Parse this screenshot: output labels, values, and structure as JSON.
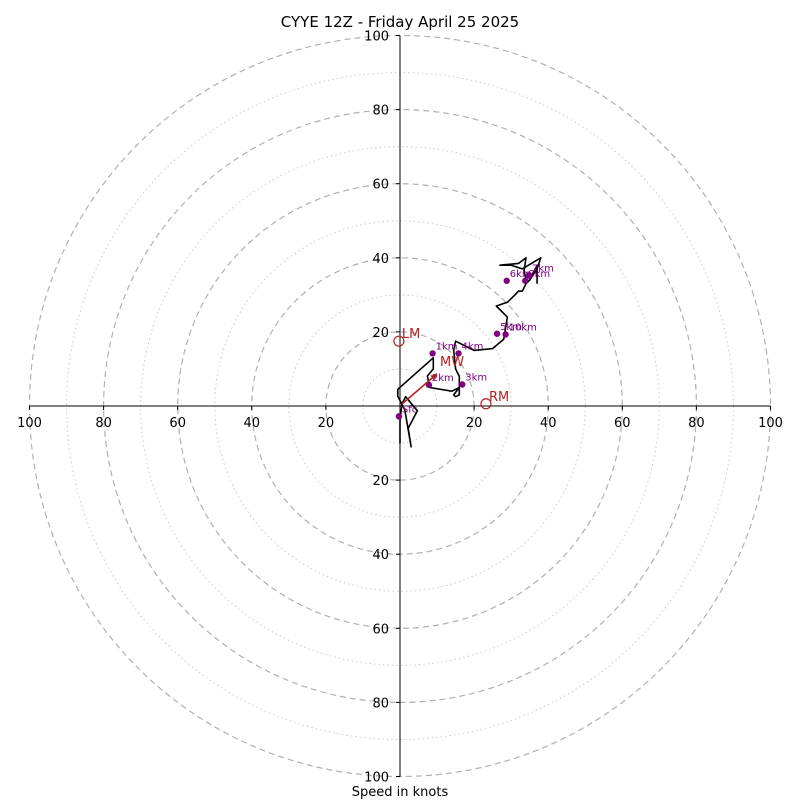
{
  "chart_data": {
    "type": "hodograph",
    "title": "CYYE 12Z - Friday April 25 2025",
    "xlabel": "Speed in knots",
    "range": [
      -100,
      100
    ],
    "rings": {
      "major": [
        20,
        40,
        60,
        80,
        100
      ],
      "minor": [
        10,
        30,
        50,
        70,
        90
      ],
      "grid": true
    },
    "ticks": {
      "x": [
        {
          "value": -100,
          "label": "100"
        },
        {
          "value": -80,
          "label": "80"
        },
        {
          "value": -60,
          "label": "60"
        },
        {
          "value": -40,
          "label": "40"
        },
        {
          "value": -20,
          "label": "20"
        },
        {
          "value": 20,
          "label": "20"
        },
        {
          "value": 40,
          "label": "40"
        },
        {
          "value": 60,
          "label": "60"
        },
        {
          "value": 80,
          "label": "80"
        },
        {
          "value": 100,
          "label": "100"
        }
      ],
      "y": [
        {
          "value": 100,
          "label": "100"
        },
        {
          "value": 80,
          "label": "80"
        },
        {
          "value": 60,
          "label": "60"
        },
        {
          "value": 40,
          "label": "40"
        },
        {
          "value": 20,
          "label": "20"
        },
        {
          "value": -20,
          "label": "20"
        },
        {
          "value": -40,
          "label": "40"
        },
        {
          "value": -60,
          "label": "60"
        },
        {
          "value": -80,
          "label": "80"
        },
        {
          "value": -100,
          "label": "100"
        }
      ]
    },
    "hodograph_line": {
      "color": "#000000",
      "points": [
        [
          0,
          -10
        ],
        [
          0,
          -4
        ],
        [
          0.5,
          0.5
        ],
        [
          1.5,
          2.5
        ],
        [
          4.7,
          -1.3
        ],
        [
          2.2,
          -6
        ],
        [
          3,
          -11
        ],
        [
          1.3,
          -1
        ],
        [
          -0.6,
          2.6
        ],
        [
          -0.6,
          4.5
        ],
        [
          9,
          13
        ],
        [
          9,
          10
        ],
        [
          7.4,
          8.1
        ],
        [
          8,
          5
        ],
        [
          14,
          4
        ],
        [
          16,
          5
        ],
        [
          14.5,
          3
        ],
        [
          15,
          2.5
        ],
        [
          16,
          3
        ],
        [
          16,
          8
        ],
        [
          15,
          10
        ],
        [
          14.5,
          15
        ],
        [
          15,
          17.5
        ],
        [
          20,
          15
        ],
        [
          25,
          15.5
        ],
        [
          28,
          18
        ],
        [
          29,
          24
        ],
        [
          26,
          27
        ],
        [
          29,
          28
        ],
        [
          31,
          30
        ],
        [
          32,
          31
        ],
        [
          33,
          31
        ],
        [
          34,
          33
        ],
        [
          35,
          34
        ],
        [
          37,
          37
        ],
        [
          38,
          40
        ],
        [
          33,
          37
        ],
        [
          30,
          38
        ],
        [
          27,
          38
        ],
        [
          32,
          38.5
        ],
        [
          34,
          40
        ],
        [
          33.5,
          36.5
        ],
        [
          34,
          34
        ],
        [
          33.5,
          33.5
        ],
        [
          35,
          34
        ],
        [
          36,
          36
        ],
        [
          37,
          38
        ],
        [
          37,
          33
        ]
      ]
    },
    "height_markers": {
      "color": "#800080",
      "points": [
        {
          "label": "Sfc",
          "u": -0.3,
          "v": -2.8
        },
        {
          "label": "1km",
          "u": 8.8,
          "v": 14.2
        },
        {
          "label": "2km",
          "u": 7.8,
          "v": 5.7
        },
        {
          "label": "3km",
          "u": 16.8,
          "v": 5.8
        },
        {
          "label": "4km",
          "u": 15.8,
          "v": 14.2
        },
        {
          "label": "5km",
          "u": 26.2,
          "v": 19.5
        },
        {
          "label": "6km",
          "u": 28.8,
          "v": 33.8
        },
        {
          "label": "7km",
          "u": 34.8,
          "v": 35.2
        },
        {
          "label": "8km",
          "u": 33.8,
          "v": 33.8
        },
        {
          "label": "10km",
          "u": 28.5,
          "v": 19.3
        }
      ]
    },
    "motion_vectors": {
      "color": "#b22222",
      "points": [
        {
          "label": "RM",
          "u": 23.2,
          "v": 0.6
        },
        {
          "label": "LM",
          "u": -0.3,
          "v": 17.5
        },
        {
          "label": "MW",
          "u": 10,
          "v": 10
        }
      ],
      "arrow": {
        "from": [
          0.5,
          0.5
        ],
        "to": [
          10,
          8.7
        ]
      }
    }
  }
}
